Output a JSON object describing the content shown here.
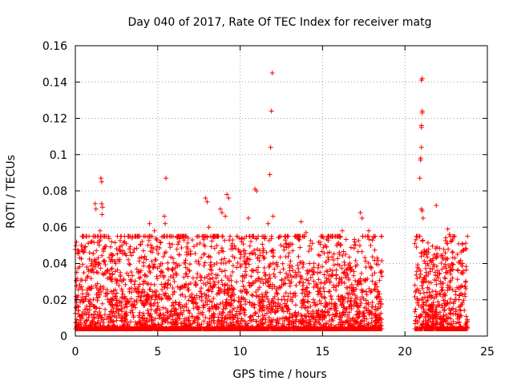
{
  "chart_data": {
    "type": "scatter",
    "title": "Day 040 of 2017, Rate Of TEC Index for receiver matg",
    "xlabel": "GPS time / hours",
    "ylabel": "ROTI / TECUs",
    "xlim": [
      0,
      25
    ],
    "ylim": [
      0,
      0.16
    ],
    "xticks": [
      0,
      5,
      10,
      15,
      20,
      25
    ],
    "xtick_labels": [
      "0",
      "5",
      "10",
      "15",
      "20",
      "25"
    ],
    "yticks": [
      0,
      0.02,
      0.04,
      0.06,
      0.08,
      0.1,
      0.12,
      0.14,
      0.16
    ],
    "ytick_labels": [
      "0",
      "0.02",
      "0.04",
      "0.06",
      "0.08",
      "0.1",
      "0.12",
      "0.14",
      "0.16"
    ],
    "grid": true,
    "marker": "plus",
    "color": "#ff0000",
    "series": [
      {
        "name": "ROTI",
        "points": [
          [
            1.2,
            0.073
          ],
          [
            1.25,
            0.07
          ],
          [
            1.5,
            0.053
          ],
          [
            1.5,
            0.058
          ],
          [
            1.55,
            0.087
          ],
          [
            1.6,
            0.085
          ],
          [
            1.6,
            0.073
          ],
          [
            1.65,
            0.071
          ],
          [
            1.62,
            0.067
          ],
          [
            2.0,
            0.055
          ],
          [
            2.2,
            0.052
          ],
          [
            4.5,
            0.062
          ],
          [
            4.8,
            0.058
          ],
          [
            5.4,
            0.066
          ],
          [
            5.45,
            0.062
          ],
          [
            5.5,
            0.087
          ],
          [
            7.9,
            0.076
          ],
          [
            8.0,
            0.074
          ],
          [
            8.1,
            0.06
          ],
          [
            8.8,
            0.07
          ],
          [
            8.9,
            0.068
          ],
          [
            9.2,
            0.078
          ],
          [
            9.3,
            0.076
          ],
          [
            9.1,
            0.066
          ],
          [
            10.5,
            0.065
          ],
          [
            10.9,
            0.081
          ],
          [
            11.0,
            0.08
          ],
          [
            11.8,
            0.089
          ],
          [
            11.85,
            0.104
          ],
          [
            11.9,
            0.124
          ],
          [
            11.95,
            0.145
          ],
          [
            12.0,
            0.066
          ],
          [
            11.7,
            0.062
          ],
          [
            13.7,
            0.063
          ],
          [
            14.0,
            0.057
          ],
          [
            16.2,
            0.058
          ],
          [
            17.3,
            0.068
          ],
          [
            17.4,
            0.065
          ],
          [
            17.8,
            0.058
          ],
          [
            20.6,
            0.051
          ],
          [
            20.7,
            0.049
          ],
          [
            20.9,
            0.087
          ],
          [
            20.95,
            0.097
          ],
          [
            20.95,
            0.098
          ],
          [
            21.0,
            0.104
          ],
          [
            21.0,
            0.115
          ],
          [
            21.0,
            0.116
          ],
          [
            21.05,
            0.123
          ],
          [
            21.05,
            0.124
          ],
          [
            21.0,
            0.141
          ],
          [
            21.05,
            0.142
          ],
          [
            21.0,
            0.07
          ],
          [
            21.05,
            0.069
          ],
          [
            21.1,
            0.065
          ],
          [
            21.9,
            0.072
          ],
          [
            22.6,
            0.059
          ],
          [
            22.7,
            0.056
          ],
          [
            22.8,
            0.052
          ],
          [
            23.5,
            0.04
          ]
        ],
        "segments": [
          {
            "x_start": 0.0,
            "x_end": 18.6,
            "baseline": 0.012,
            "spread": 0.02
          },
          {
            "x_start": 20.6,
            "x_end": 23.8,
            "baseline": 0.012,
            "spread": 0.018
          }
        ]
      }
    ]
  }
}
